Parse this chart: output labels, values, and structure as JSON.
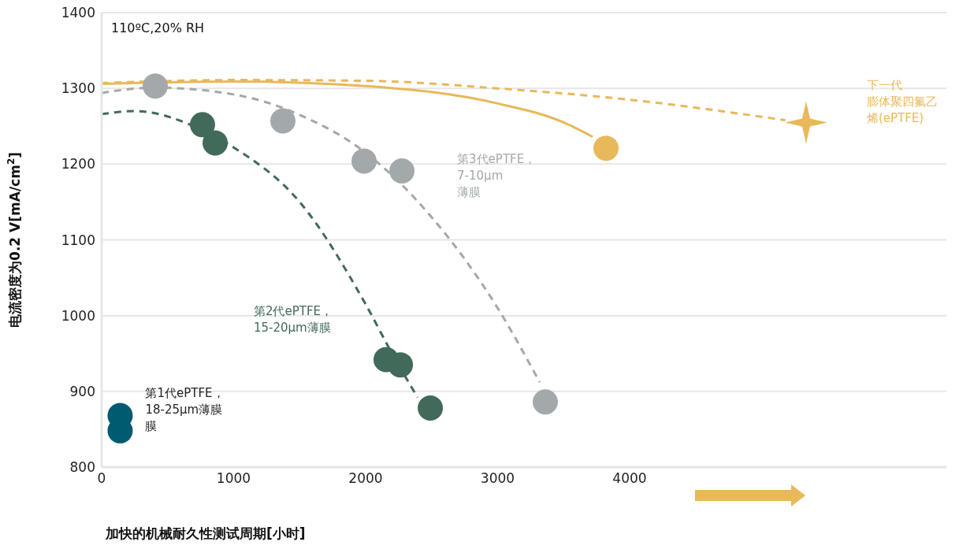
{
  "chart_data": {
    "type": "scatter",
    "xlabel": "加快的机械耐久性测试周期[小时]",
    "ylabel": "电流密度为0.2 V[mA/cm$^{2}$]",
    "xlim": [
      0,
      6400
    ],
    "xticks": [
      0,
      1000,
      2000,
      3000,
      4000
    ],
    "ylim": [
      800,
      1400
    ],
    "yticks": [
      800,
      900,
      1000,
      1100,
      1200,
      1300,
      1400
    ],
    "grid": "y",
    "legend": false,
    "annotations": [
      "110ºC,20% RH"
    ],
    "series": [
      {
        "name": "第1代ePTFE，18-25μm薄膜膜",
        "color": "#005a70",
        "marker": "circle",
        "x": [
          140,
          140
        ],
        "values": [
          868,
          848
        ]
      },
      {
        "type": "line",
        "color": "#426a5a",
        "line_style": "dashed",
        "marker": "none",
        "x": [
          0,
          250,
          700,
          1000,
          1500,
          2000,
          2200,
          2394
        ],
        "values": [
          1266,
          1270,
          1250,
          1222,
          1150,
          1015,
          950,
          892
        ]
      },
      {
        "name": "第2代ePTFE，15-20μm薄膜",
        "color": "#426a5a",
        "marker": "circle",
        "x": [
          764,
          860,
          2155,
          2263,
          2490
        ],
        "values": [
          1252,
          1228,
          942,
          935,
          878
        ]
      },
      {
        "type": "line",
        "color": "#a3a9aa",
        "line_style": "dashed",
        "marker": "none",
        "x": [
          0,
          400,
          1000,
          1500,
          2000,
          2500,
          3000,
          3319
        ],
        "values": [
          1294,
          1301,
          1292,
          1265,
          1215,
          1130,
          1010,
          912
        ]
      },
      {
        "name": "第3代ePTFE，7-10μm薄膜",
        "color": "#a3a9aa",
        "marker": "circle",
        "x": [
          406,
          1373,
          1988,
          2275,
          3361
        ],
        "values": [
          1303,
          1257,
          1204,
          1191,
          886
        ]
      },
      {
        "type": "line",
        "color": "#e8b85a",
        "line_style": "solid",
        "marker": "none",
        "x": [
          0,
          1000,
          2000,
          3000,
          3500,
          3720
        ],
        "values": [
          1306,
          1309,
          1303,
          1280,
          1255,
          1236
        ]
      },
      {
        "color": "#e8b85a",
        "marker": "circle",
        "x": [
          3821
        ],
        "values": [
          1221
        ]
      },
      {
        "type": "line",
        "color": "#e8b85a",
        "line_style": "dashed",
        "marker": "none",
        "x": [
          0,
          1000,
          2000,
          3000,
          4000,
          5180
        ],
        "values": [
          1307,
          1311,
          1310,
          1300,
          1285,
          1258
        ]
      },
      {
        "name": "下一代膨体聚四氟乙烯(ePTFE)",
        "color": "#e8b85a",
        "marker": "star",
        "x": [
          5337
        ],
        "values": [
          1255
        ]
      }
    ]
  }
}
